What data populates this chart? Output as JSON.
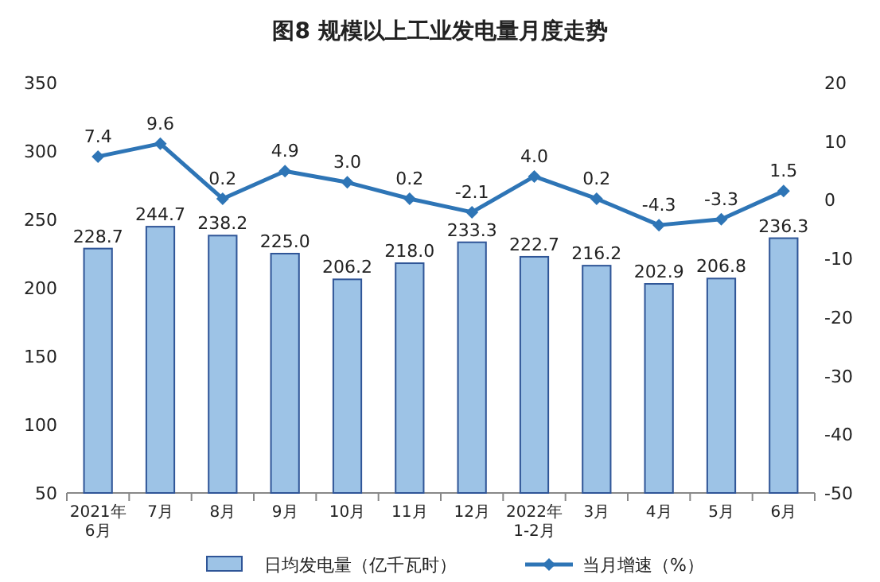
{
  "chart_data": {
    "type": "bar",
    "title": "图8  规模以上工业发电量月度走势",
    "categories": [
      "2021年\n6月",
      "7月",
      "8月",
      "9月",
      "10月",
      "11月",
      "12月",
      "2022年\n1-2月",
      "3月",
      "4月",
      "5月",
      "6月"
    ],
    "series": [
      {
        "name": "日均发电量（亿千瓦时）",
        "color": "#9dc3e6",
        "values": [
          228.7,
          244.7,
          238.2,
          225.0,
          206.2,
          218.0,
          233.3,
          222.7,
          216.2,
          202.9,
          206.8,
          236.3
        ],
        "value_labels": [
          "228.7",
          "244.7",
          "238.2",
          "225.0",
          "206.2",
          "218.0",
          "233.3",
          "222.7",
          "216.2",
          "202.9",
          "206.8",
          "236.3"
        ]
      },
      {
        "name": "当月增速（%）",
        "type": "line",
        "axis": "y2",
        "color": "#2e75b6",
        "marker": "diamond",
        "values": [
          7.4,
          9.6,
          0.2,
          4.9,
          3.0,
          0.2,
          -2.1,
          4.0,
          0.2,
          -4.3,
          -3.3,
          1.5
        ],
        "value_labels": [
          "7.4",
          "9.6",
          "0.2",
          "4.9",
          "3.0",
          "0.2",
          "-2.1",
          "4.0",
          "0.2",
          "-4.3",
          "-3.3",
          "1.5"
        ]
      }
    ],
    "ylim": [
      50,
      350
    ],
    "yticks": [
      50,
      100,
      150,
      200,
      250,
      300,
      350
    ],
    "y2lim": [
      -50,
      20
    ],
    "y2ticks": [
      -50,
      -40,
      -30,
      -20,
      -10,
      0,
      10,
      20
    ],
    "legend": "bottom",
    "grid": false
  }
}
